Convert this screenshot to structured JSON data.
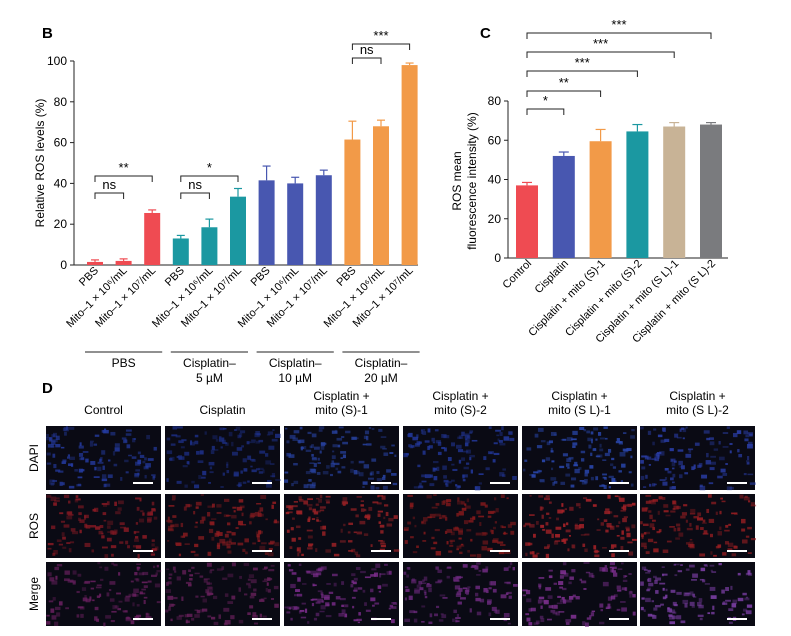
{
  "chart_data": [
    {
      "panel": "B",
      "type": "bar",
      "ylabel": "Relative ROS levels (%)",
      "ylim": [
        0,
        100
      ],
      "yticks": [
        0,
        20,
        40,
        60,
        80,
        100
      ],
      "categories": [
        "PBS",
        "Mito–1 × 10⁶/mL",
        "Mito–1 × 10⁷/mL",
        "PBS",
        "Mito–1 × 10⁶/mL",
        "Mito–1 × 10⁷/mL",
        "PBS",
        "Mito–1 × 10⁶/mL",
        "Mito–1 × 10⁷/mL",
        "PBS",
        "Mito–1 × 10⁶/mL",
        "Mito–1 × 10⁷/mL"
      ],
      "values": [
        1.5,
        2,
        25.5,
        13,
        18.5,
        33.5,
        41.5,
        40,
        44,
        61.5,
        68,
        98
      ],
      "errors": [
        1,
        1,
        1.5,
        1.5,
        4,
        4,
        7,
        3,
        2.5,
        9,
        3,
        1
      ],
      "groups": [
        {
          "lines": [
            "PBS"
          ],
          "colors": [
            "#ef4b52",
            "#ef4b52",
            "#ef4b52"
          ]
        },
        {
          "lines": [
            "Cisplatin–",
            "5 µM"
          ],
          "colors": [
            "#1b98a1",
            "#1b98a1",
            "#1b98a1"
          ]
        },
        {
          "lines": [
            "Cisplatin–",
            "10 µM"
          ],
          "colors": [
            "#4857b0",
            "#4857b0",
            "#4857b0"
          ]
        },
        {
          "lines": [
            "Cisplatin–",
            "20 µM"
          ],
          "colors": [
            "#f29a48",
            "#f29a48",
            "#f29a48"
          ]
        }
      ],
      "annotations": [
        {
          "from": 0,
          "to": 1,
          "label": "ns"
        },
        {
          "from": 0,
          "to": 2,
          "label": "**"
        },
        {
          "from": 3,
          "to": 4,
          "label": "ns"
        },
        {
          "from": 3,
          "to": 5,
          "label": "*"
        },
        {
          "from": 9,
          "to": 10,
          "label": "ns"
        },
        {
          "from": 9,
          "to": 11,
          "label": "***"
        }
      ]
    },
    {
      "panel": "C",
      "type": "bar",
      "ylabel": "ROS mean fluorescence intensity (%)",
      "ylabel_lines": [
        "ROS mean",
        "fluorescence intensity (%)"
      ],
      "ylim": [
        0,
        80
      ],
      "yticks": [
        0,
        20,
        40,
        60,
        80
      ],
      "categories": [
        "Control",
        "Cisplatin",
        "Cisplatin + mito (S)-1",
        "Cisplatin + mito (S)-2",
        "Cisplatin + mito (S L)-1",
        "Cisplatin + mito (S L)-2"
      ],
      "values": [
        37,
        52,
        59.5,
        64.5,
        67,
        68
      ],
      "errors": [
        1.5,
        2,
        6,
        3.5,
        2,
        1
      ],
      "colors": [
        "#ef4b52",
        "#4857b0",
        "#f29a48",
        "#1b98a1",
        "#c8b396",
        "#7a7b7e"
      ],
      "annotations": [
        {
          "from": 0,
          "to": 1,
          "label": "*"
        },
        {
          "from": 0,
          "to": 2,
          "label": "**"
        },
        {
          "from": 0,
          "to": 3,
          "label": "***"
        },
        {
          "from": 0,
          "to": 4,
          "label": "***"
        },
        {
          "from": 0,
          "to": 5,
          "label": "***"
        }
      ]
    }
  ],
  "panels": {
    "b": "B",
    "c": "C",
    "d": "D"
  },
  "micrographs": {
    "columns": [
      {
        "lines": [
          "Control"
        ]
      },
      {
        "lines": [
          "Cisplatin"
        ]
      },
      {
        "lines": [
          "Cisplatin +",
          "mito (S)-1"
        ]
      },
      {
        "lines": [
          "Cisplatin +",
          "mito (S)-2"
        ]
      },
      {
        "lines": [
          "Cisplatin +",
          "mito (S L)-1"
        ]
      },
      {
        "lines": [
          "Cisplatin +",
          "mito (S L)-2"
        ]
      }
    ],
    "rows": [
      {
        "label": "DAPI",
        "tints": [
          "#243a9e",
          "#1d2f86",
          "#27419f",
          "#22379a",
          "#2a48b0",
          "#2a3da6"
        ]
      },
      {
        "label": "ROS",
        "tints": [
          "#8a1a24",
          "#8e1c20",
          "#9e2226",
          "#8a1a1c",
          "#a82228",
          "#9a1e22"
        ]
      },
      {
        "label": "Merge",
        "tints": [
          "#6a2060",
          "#66205a",
          "#7a2c8a",
          "#6e2a80",
          "#7e3090",
          "#7e40a8"
        ]
      }
    ]
  }
}
